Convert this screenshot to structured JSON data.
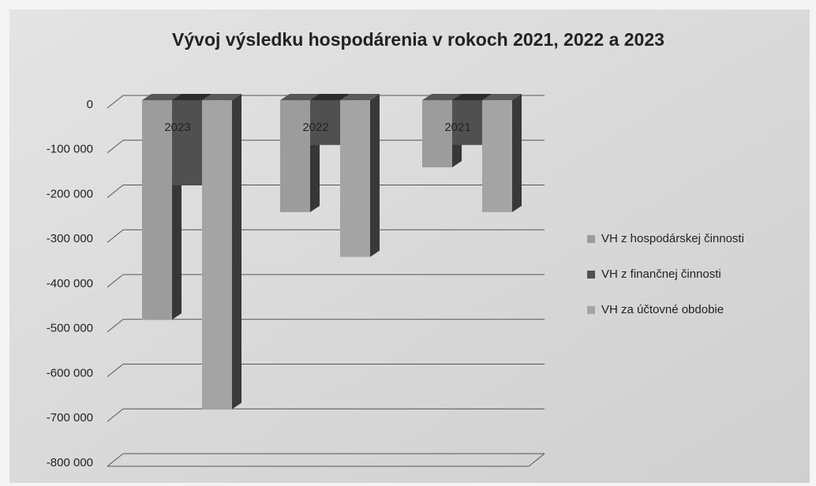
{
  "chart_data": {
    "type": "bar3d",
    "title": "Vývoj výsledku hospodárenia v rokoch 2021, 2022 a 2023",
    "categories": [
      "2023",
      "2022",
      "2021"
    ],
    "series": [
      {
        "name": "VH z hospodárskej činnosti",
        "color": "#9c9c9c",
        "values": [
          -490000,
          -250000,
          -150000
        ]
      },
      {
        "name": "VH z finančnej činnosti",
        "color": "#505050",
        "values": [
          -190000,
          -100000,
          -100000
        ]
      },
      {
        "name": "VH za účtovné obdobie",
        "color": "#a4a4a4",
        "values": [
          -690000,
          -350000,
          -250000
        ]
      }
    ],
    "ylim": [
      -800000,
      0
    ],
    "yticks": [
      0,
      {
        "value": -100000,
        "label": "-100 000"
      },
      {
        "value": -200000,
        "label": "-200 000"
      },
      {
        "value": -300000,
        "label": "-300 000"
      },
      {
        "value": -400000,
        "label": "-400 000"
      },
      {
        "value": -500000,
        "label": "-500 000"
      },
      {
        "value": -600000,
        "label": "-600 000"
      },
      {
        "value": -700000,
        "label": "-700 000"
      },
      {
        "value": -800000,
        "label": "-800 000"
      }
    ],
    "grid": true,
    "legend": "right"
  }
}
